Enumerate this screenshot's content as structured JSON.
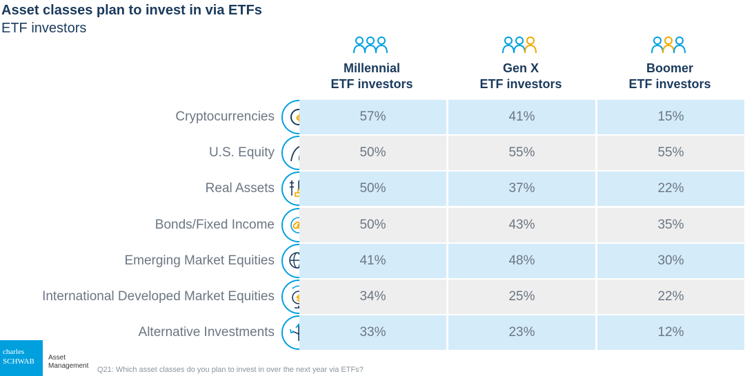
{
  "title": "Asset classes plan to invest in via ETFs",
  "subtitle": "ETF investors",
  "footnote": "Q21: Which asset classes do you plan to invest in over the next year via ETFs?",
  "logo": {
    "line1": "charles",
    "line2": "SCHWAB",
    "side1": "Asset",
    "side2": "Management"
  },
  "colors": {
    "band": "#d4ebf9",
    "gray": "#eeeeee",
    "accent": "#00a0df",
    "gold": "#f2a900",
    "navy": "#1a3a5c"
  },
  "chart_data": {
    "type": "table",
    "columns": [
      {
        "line1": "Millennial",
        "line2": "ETF investors",
        "icon": "people-icon"
      },
      {
        "line1": "Gen X",
        "line2": "ETF investors",
        "icon": "people-icon"
      },
      {
        "line1": "Boomer",
        "line2": "ETF investors",
        "icon": "people-icon"
      }
    ],
    "rows": [
      {
        "label": "Cryptocurrencies",
        "icon": "crypto-coin-icon",
        "values": [
          "57%",
          "41%",
          "15%"
        ]
      },
      {
        "label": "U.S. Equity",
        "icon": "eagle-icon",
        "values": [
          "50%",
          "55%",
          "55%"
        ]
      },
      {
        "label": "Real Assets",
        "icon": "real-assets-icon",
        "values": [
          "50%",
          "37%",
          "22%"
        ]
      },
      {
        "label": "Bonds/Fixed Income",
        "icon": "chain-link-icon",
        "values": [
          "50%",
          "43%",
          "35%"
        ]
      },
      {
        "label": "Emerging Market Equities",
        "icon": "globe-alert-icon",
        "values": [
          "41%",
          "48%",
          "30%"
        ]
      },
      {
        "label": "International Developed Market Equities",
        "icon": "dollar-globe-icon",
        "values": [
          "34%",
          "25%",
          "22%"
        ]
      },
      {
        "label": "Alternative Investments",
        "icon": "arrows-split-icon",
        "values": [
          "33%",
          "23%",
          "12%"
        ]
      }
    ]
  }
}
